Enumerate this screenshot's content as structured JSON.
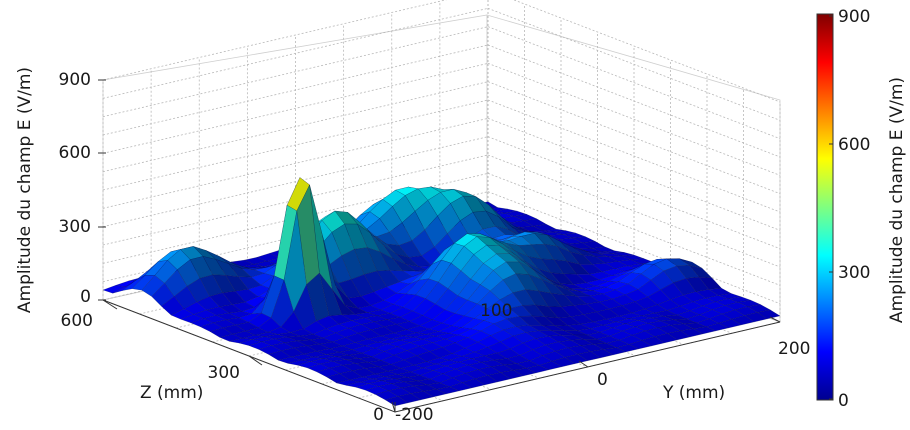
{
  "chart_data": {
    "type": "surface3d",
    "zlabel": "Amplitude du champ E (V/m)",
    "xlabel": "Z (mm)",
    "ylabel": "Y (mm)",
    "colorbar_label": "Amplitude du champ E (V/m)",
    "zlim": [
      0,
      900
    ],
    "xlim": [
      0,
      600
    ],
    "ylim": [
      -200,
      200
    ],
    "z_ticks": [
      "0",
      "300",
      "600",
      "900"
    ],
    "x_ticks": [
      "0",
      "300",
      "600"
    ],
    "y_ticks": [
      "-200",
      "0",
      "200"
    ],
    "colorbar_ticks": [
      "0",
      "300",
      "600",
      "900"
    ],
    "annotation": "100",
    "colormap": "jet",
    "grid": true,
    "surface_peaks": [
      {
        "z_mm": 370,
        "y_mm": -110,
        "amplitude": 640
      },
      {
        "z_mm": 440,
        "y_mm": -40,
        "amplitude": 330
      },
      {
        "z_mm": 500,
        "y_mm": 50,
        "amplitude": 250
      },
      {
        "z_mm": 300,
        "y_mm": 30,
        "amplitude": 250
      },
      {
        "z_mm": 450,
        "y_mm": 100,
        "amplitude": 240
      },
      {
        "z_mm": 220,
        "y_mm": 30,
        "amplitude": 200
      },
      {
        "z_mm": 330,
        "y_mm": 110,
        "amplitude": 180
      },
      {
        "z_mm": 520,
        "y_mm": -150,
        "amplitude": 220
      },
      {
        "z_mm": 180,
        "y_mm": 170,
        "amplitude": 120
      },
      {
        "z_mm": 130,
        "y_mm": -20,
        "amplitude": 80
      }
    ]
  }
}
